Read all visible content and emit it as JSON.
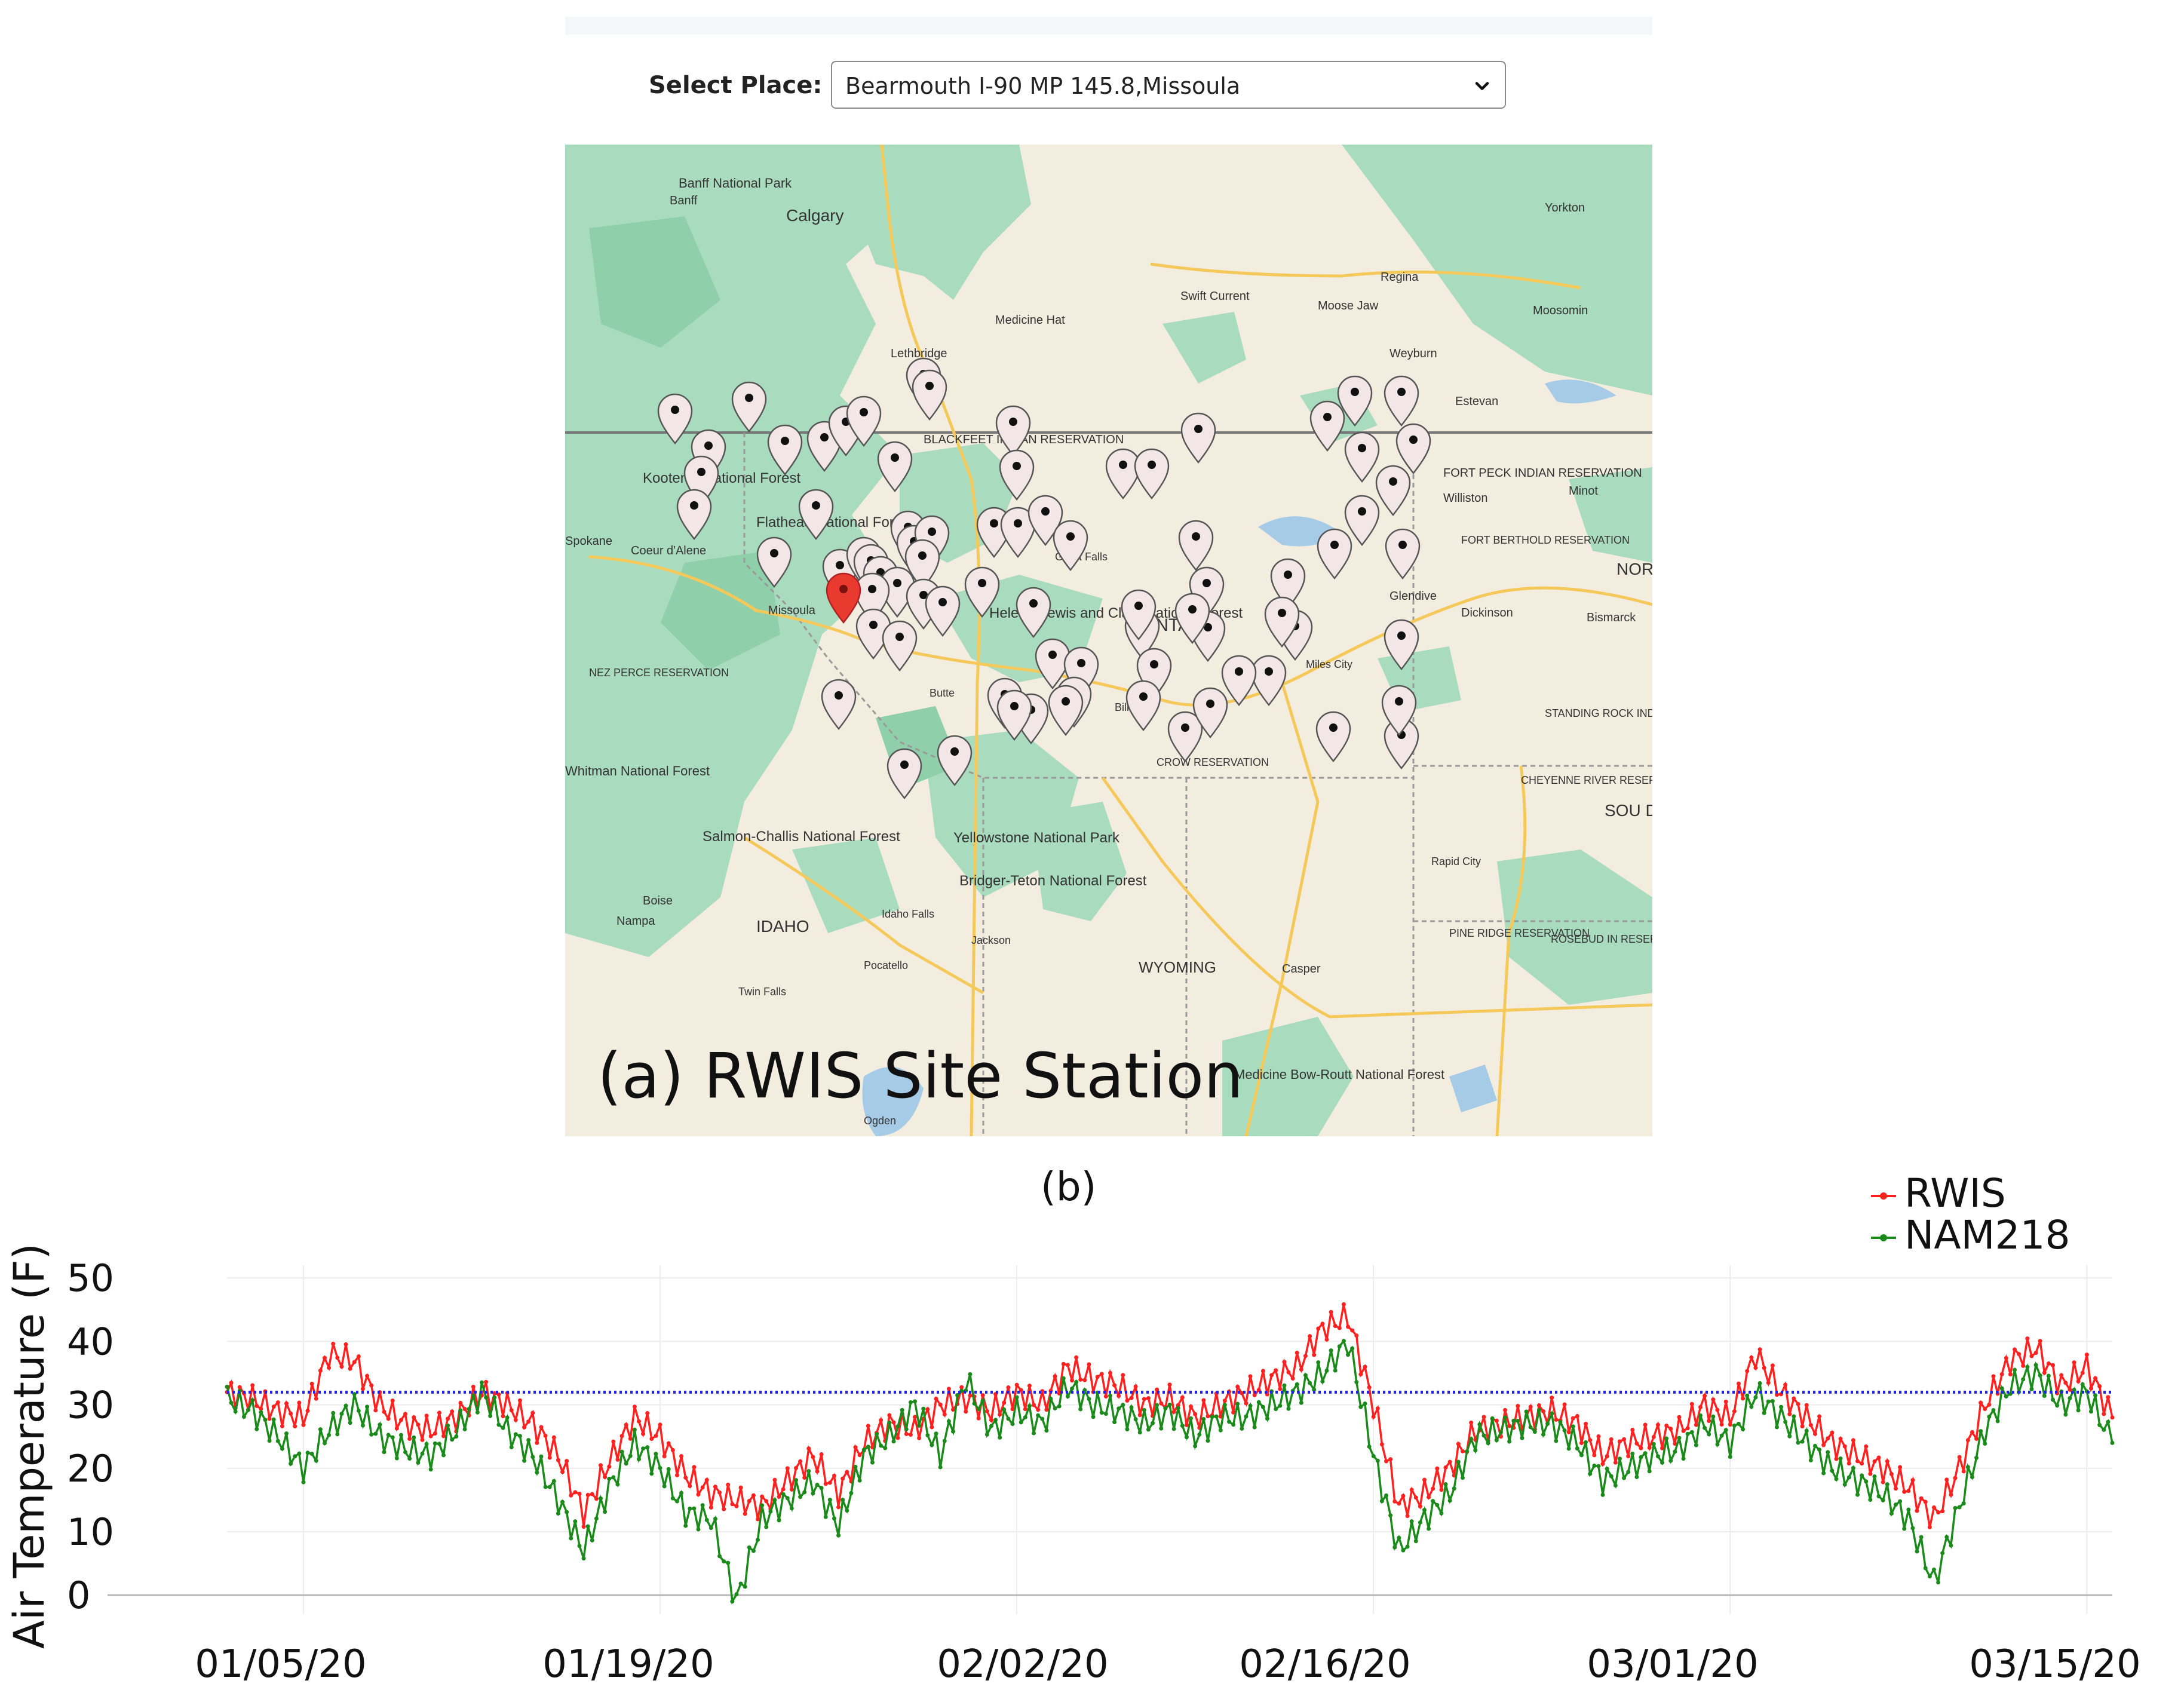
{
  "select_place": {
    "label": "Select Place:",
    "value": "Bearmouth I-90 MP 145.8,Missoula"
  },
  "map": {
    "caption": "(a) RWIS Site Station",
    "places": [
      {
        "name": "Banff National Park"
      },
      {
        "name": "Banff"
      },
      {
        "name": "Calgary"
      },
      {
        "name": "Yorkton"
      },
      {
        "name": "Regina"
      },
      {
        "name": "Swift Current"
      },
      {
        "name": "Moose Jaw"
      },
      {
        "name": "Moosomin"
      },
      {
        "name": "Medicine Hat"
      },
      {
        "name": "Lethbridge"
      },
      {
        "name": "Weyburn"
      },
      {
        "name": "Estevan"
      },
      {
        "name": "Spokane"
      },
      {
        "name": "Coeur d'Alene"
      },
      {
        "name": "Missoula"
      },
      {
        "name": "MONTANA"
      },
      {
        "name": "Glendive"
      },
      {
        "name": "Williston"
      },
      {
        "name": "Minot"
      },
      {
        "name": "FORT BERTHOLD RESERVATION"
      },
      {
        "name": "Dickinson"
      },
      {
        "name": "Bismarck"
      },
      {
        "name": "NOR DAKO"
      },
      {
        "name": "NEZ PERCE RESERVATION"
      },
      {
        "name": "Billings"
      },
      {
        "name": "CROW RESERVATION"
      },
      {
        "name": "Miles City"
      },
      {
        "name": "STANDING ROCK INDIAN RESERVATION"
      },
      {
        "name": "CHEYENNE RIVER RESERVATION"
      },
      {
        "name": "SOU DAKO"
      },
      {
        "name": "Salmon-Challis National Forest"
      },
      {
        "name": "Yellowstone National Park"
      },
      {
        "name": "Bridger-Teton National Forest"
      },
      {
        "name": "Idaho Falls"
      },
      {
        "name": "Jackson"
      },
      {
        "name": "Boise"
      },
      {
        "name": "Nampa"
      },
      {
        "name": "IDAHO"
      },
      {
        "name": "Pocatello"
      },
      {
        "name": "Twin Falls"
      },
      {
        "name": "WYOMING"
      },
      {
        "name": "Casper"
      },
      {
        "name": "Rapid City"
      },
      {
        "name": "PINE RIDGE RESERVATION"
      },
      {
        "name": "ROSEBUD IN RESERVAT"
      },
      {
        "name": "Medicine Bow-Routt National Forest"
      },
      {
        "name": "Ogden"
      },
      {
        "name": "Kootenai National Forest"
      },
      {
        "name": "Flathead National Forest"
      },
      {
        "name": "FORT PECK INDIAN RESERVATION"
      },
      {
        "name": "Helena-Lewis and Clark National Forest"
      },
      {
        "name": "BLACKFEET INDIAN RESERVATION"
      },
      {
        "name": "Great Falls"
      },
      {
        "name": "Butte"
      },
      {
        "name": "Whitman National Forest"
      }
    ],
    "colors": {
      "land": "#f3ede0",
      "forest": "#a9dbbf",
      "forest_dark": "#8fcfaa",
      "water": "#a6cbe6",
      "road": "#f5c85a",
      "border": "#9a9a9a",
      "marker": "#f2e6e6",
      "marker_selected": "#e83a2f"
    }
  },
  "chart_data": {
    "type": "line",
    "title": "(b)",
    "xlabel": "",
    "ylabel": "Air Temperature (F)",
    "ylim": [
      -3,
      52
    ],
    "x_tick_labels": [
      "01/05/20",
      "01/19/20",
      "02/02/20",
      "02/16/20",
      "03/01/20",
      "03/15/20"
    ],
    "y_ticks": [
      0,
      10,
      20,
      30,
      40,
      50
    ],
    "legend": [
      "RWIS",
      "NAM218"
    ],
    "legend_position": "top-right",
    "reference_line": {
      "y": 32,
      "color": "#2222ee",
      "style": "dotted"
    },
    "x_range_days": [
      0,
      74
    ],
    "series": [
      {
        "name": "RWIS",
        "color": "#ff2020",
        "points": [
          [
            0,
            32
          ],
          [
            1,
            31
          ],
          [
            2,
            29
          ],
          [
            3,
            28
          ],
          [
            4,
            38
          ],
          [
            5,
            37
          ],
          [
            6,
            30
          ],
          [
            7,
            27
          ],
          [
            8,
            26
          ],
          [
            9,
            28
          ],
          [
            10,
            32
          ],
          [
            11,
            30
          ],
          [
            12,
            27
          ],
          [
            13,
            22
          ],
          [
            14,
            13
          ],
          [
            15,
            21
          ],
          [
            16,
            28
          ],
          [
            17,
            25
          ],
          [
            18,
            19
          ],
          [
            19,
            16
          ],
          [
            20,
            15
          ],
          [
            21,
            14
          ],
          [
            22,
            18
          ],
          [
            23,
            22
          ],
          [
            24,
            16
          ],
          [
            25,
            24
          ],
          [
            26,
            27
          ],
          [
            27,
            26
          ],
          [
            28,
            30
          ],
          [
            29,
            31
          ],
          [
            30,
            29
          ],
          [
            31,
            32
          ],
          [
            32,
            30
          ],
          [
            33,
            36
          ],
          [
            34,
            34
          ],
          [
            35,
            33
          ],
          [
            36,
            30
          ],
          [
            37,
            31
          ],
          [
            38,
            28
          ],
          [
            39,
            30
          ],
          [
            40,
            32
          ],
          [
            41,
            34
          ],
          [
            42,
            36
          ],
          [
            43,
            42
          ],
          [
            44,
            44
          ],
          [
            45,
            30
          ],
          [
            46,
            14
          ],
          [
            47,
            16
          ],
          [
            48,
            20
          ],
          [
            49,
            26
          ],
          [
            50,
            27
          ],
          [
            51,
            28
          ],
          [
            52,
            29
          ],
          [
            53,
            27
          ],
          [
            54,
            22
          ],
          [
            55,
            24
          ],
          [
            56,
            25
          ],
          [
            57,
            26
          ],
          [
            58,
            30
          ],
          [
            59,
            28
          ],
          [
            60,
            38
          ],
          [
            61,
            32
          ],
          [
            62,
            28
          ],
          [
            63,
            24
          ],
          [
            64,
            22
          ],
          [
            65,
            20
          ],
          [
            66,
            17
          ],
          [
            67,
            12
          ],
          [
            68,
            20
          ],
          [
            69,
            30
          ],
          [
            70,
            37
          ],
          [
            71,
            39
          ],
          [
            72,
            33
          ],
          [
            73,
            36
          ],
          [
            74,
            28
          ]
        ]
      },
      {
        "name": "NAM218",
        "color": "#1a8a1a",
        "points": [
          [
            0,
            31
          ],
          [
            1,
            29
          ],
          [
            2,
            25
          ],
          [
            3,
            20
          ],
          [
            4,
            26
          ],
          [
            5,
            30
          ],
          [
            6,
            25
          ],
          [
            7,
            23
          ],
          [
            8,
            22
          ],
          [
            9,
            26
          ],
          [
            10,
            32
          ],
          [
            11,
            26
          ],
          [
            12,
            22
          ],
          [
            13,
            15
          ],
          [
            14,
            7
          ],
          [
            15,
            17
          ],
          [
            16,
            24
          ],
          [
            17,
            20
          ],
          [
            18,
            13
          ],
          [
            19,
            12
          ],
          [
            20,
            -1
          ],
          [
            21,
            12
          ],
          [
            22,
            15
          ],
          [
            23,
            18
          ],
          [
            24,
            11
          ],
          [
            25,
            22
          ],
          [
            26,
            25
          ],
          [
            27,
            30
          ],
          [
            28,
            22
          ],
          [
            29,
            34
          ],
          [
            30,
            26
          ],
          [
            31,
            29
          ],
          [
            32,
            27
          ],
          [
            33,
            33
          ],
          [
            34,
            30
          ],
          [
            35,
            29
          ],
          [
            36,
            27
          ],
          [
            37,
            29
          ],
          [
            38,
            25
          ],
          [
            39,
            28
          ],
          [
            40,
            28
          ],
          [
            41,
            30
          ],
          [
            42,
            32
          ],
          [
            43,
            35
          ],
          [
            44,
            40
          ],
          [
            45,
            22
          ],
          [
            46,
            7
          ],
          [
            47,
            12
          ],
          [
            48,
            16
          ],
          [
            49,
            25
          ],
          [
            50,
            26
          ],
          [
            51,
            27
          ],
          [
            52,
            27
          ],
          [
            53,
            24
          ],
          [
            54,
            18
          ],
          [
            55,
            20
          ],
          [
            56,
            22
          ],
          [
            57,
            23
          ],
          [
            58,
            27
          ],
          [
            59,
            24
          ],
          [
            60,
            32
          ],
          [
            61,
            28
          ],
          [
            62,
            24
          ],
          [
            63,
            20
          ],
          [
            64,
            18
          ],
          [
            65,
            16
          ],
          [
            66,
            12
          ],
          [
            67,
            2
          ],
          [
            68,
            14
          ],
          [
            69,
            26
          ],
          [
            70,
            33
          ],
          [
            71,
            35
          ],
          [
            72,
            30
          ],
          [
            73,
            32
          ],
          [
            74,
            24
          ]
        ]
      }
    ]
  }
}
